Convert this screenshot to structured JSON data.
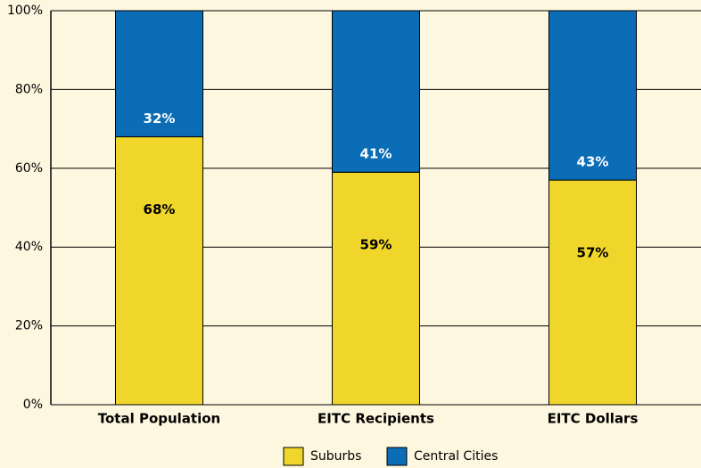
{
  "chart_data": {
    "type": "stacked_bar",
    "categories": [
      "Total Population",
      "EITC Recipients",
      "EITC Dollars"
    ],
    "series": [
      {
        "name": "Suburbs",
        "color": "#f0d62a",
        "values": [
          68,
          59,
          57
        ],
        "value_labels": [
          "68%",
          "59%",
          "57%"
        ],
        "label_color": "#000000"
      },
      {
        "name": "Central Cities",
        "color": "#0a6db5",
        "values": [
          32,
          41,
          43
        ],
        "value_labels": [
          "32%",
          "41%",
          "43%"
        ],
        "label_color": "#ffffff"
      }
    ],
    "ylim": [
      0,
      100
    ],
    "yticks": [
      {
        "value": 0,
        "label": "0%"
      },
      {
        "value": 20,
        "label": "20%"
      },
      {
        "value": 40,
        "label": "40%"
      },
      {
        "value": 60,
        "label": "60%"
      },
      {
        "value": 80,
        "label": "80%"
      },
      {
        "value": 100,
        "label": "100%"
      }
    ],
    "grid": true,
    "legend": "bottom"
  }
}
